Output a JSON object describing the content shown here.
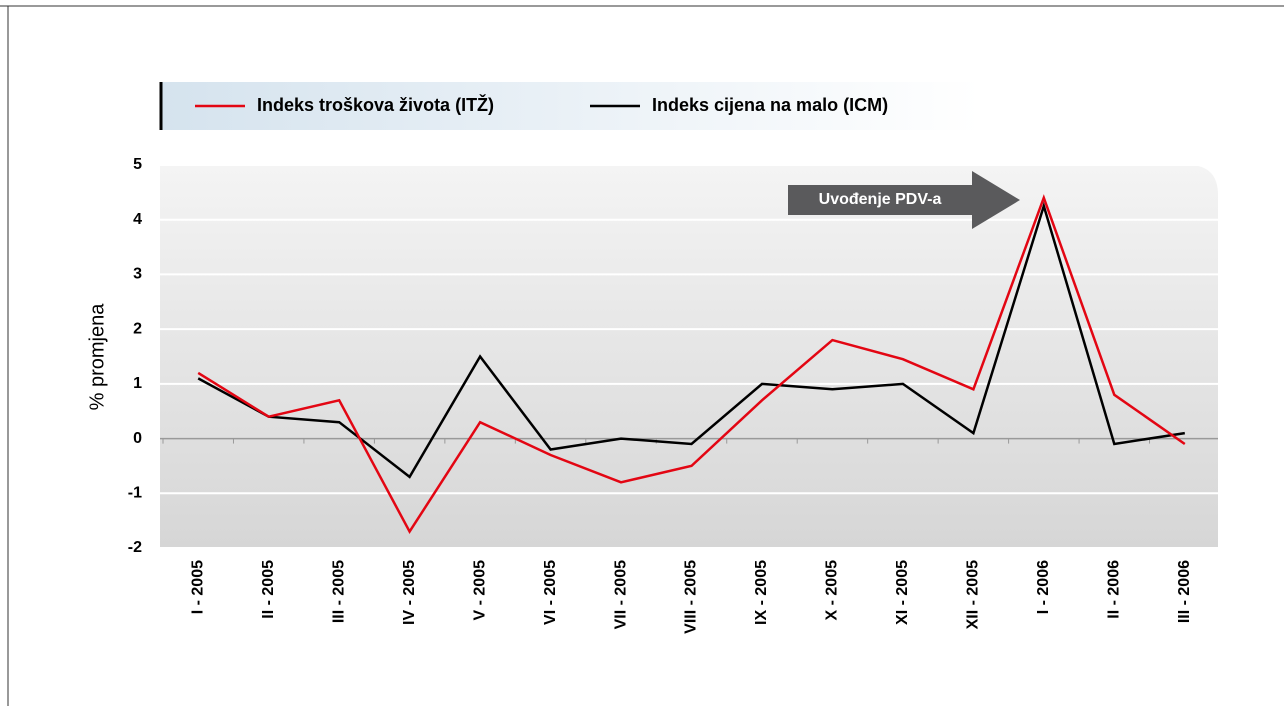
{
  "chart_data": {
    "type": "line",
    "y_label": "% promjena",
    "annotation": "Uvođenje PDV-a",
    "categories": [
      "I - 2005",
      "II - 2005",
      "III - 2005",
      "IV - 2005",
      "V - 2005",
      "VI - 2005",
      "VII - 2005",
      "VIII - 2005",
      "IX - 2005",
      "X - 2005",
      "XI - 2005",
      "XII - 2005",
      "I - 2006",
      "II - 2006",
      "III - 2006"
    ],
    "series": [
      {
        "name": "Indeks troškova života (ITŽ)",
        "color": "#e30613",
        "values": [
          1.2,
          0.4,
          0.7,
          -1.7,
          0.3,
          -0.3,
          -0.8,
          -0.5,
          0.7,
          1.8,
          1.45,
          0.9,
          4.4,
          0.8,
          -0.1
        ]
      },
      {
        "name": "Indeks cijena na malo (ICM)",
        "color": "#000000",
        "values": [
          1.1,
          0.4,
          0.3,
          -0.7,
          1.5,
          -0.2,
          0.0,
          -0.1,
          1.0,
          0.9,
          1.0,
          0.1,
          4.25,
          -0.1,
          0.1
        ]
      }
    ],
    "ylim": [
      -2,
      5
    ],
    "yticks": [
      5,
      4,
      3,
      2,
      1,
      0,
      -1,
      -2
    ],
    "grid": true
  }
}
